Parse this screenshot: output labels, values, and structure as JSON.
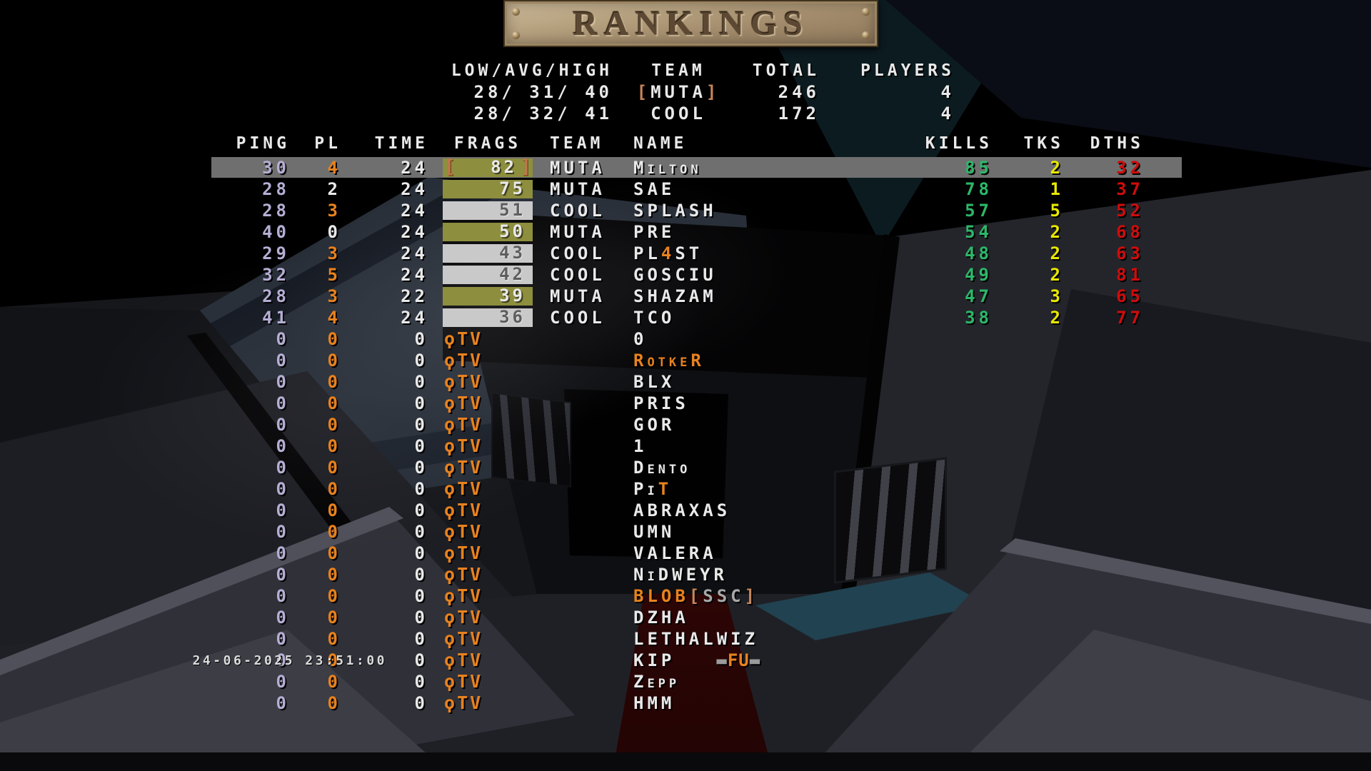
{
  "banner": {
    "title": "RANKINGS"
  },
  "summary": {
    "headers": {
      "range": "LOW/AVG/HIGH",
      "team": "TEAM",
      "total": "TOTAL",
      "players": "PLAYERS"
    },
    "rows": [
      {
        "range": "28/ 31/ 40",
        "team": "MUTA",
        "team_bracketed": true,
        "total": "246",
        "players": "4"
      },
      {
        "range": "28/ 32/ 41",
        "team": "COOL",
        "team_bracketed": false,
        "total": "172",
        "players": "4"
      }
    ]
  },
  "table": {
    "headers": {
      "ping": "PING",
      "pl": "PL",
      "time": "TIME",
      "frags": "FRAGS",
      "team": "TEAM",
      "name": "NAME",
      "kills": "KILLS",
      "tks": "TKS",
      "dths": "DTHS"
    },
    "players": [
      {
        "ping": "30",
        "pl": "4",
        "pl_color": "orange",
        "time": "24",
        "frags": "82",
        "frag_box": "olive",
        "frag_brackets": true,
        "team": "MUTA",
        "name": [
          {
            "text": "Milton"
          }
        ],
        "kills": "85",
        "tks": "2",
        "dths": "32",
        "highlighted": true
      },
      {
        "ping": "28",
        "pl": "2",
        "pl_color": "white",
        "time": "24",
        "frags": "75",
        "frag_box": "olive",
        "frag_brackets": false,
        "team": "MUTA",
        "name": [
          {
            "text": "SAE"
          }
        ],
        "kills": "78",
        "tks": "1",
        "dths": "37",
        "highlighted": false
      },
      {
        "ping": "28",
        "pl": "3",
        "pl_color": "orange",
        "time": "24",
        "frags": "51",
        "frag_box": "gray",
        "frag_brackets": false,
        "team": "COOL",
        "name": [
          {
            "text": "SPLASH"
          }
        ],
        "kills": "57",
        "tks": "5",
        "dths": "52",
        "highlighted": false
      },
      {
        "ping": "40",
        "pl": "0",
        "pl_color": "white",
        "time": "24",
        "frags": "50",
        "frag_box": "olive",
        "frag_brackets": false,
        "team": "MUTA",
        "name": [
          {
            "text": "PRE"
          }
        ],
        "kills": "54",
        "tks": "2",
        "dths": "68",
        "highlighted": false
      },
      {
        "ping": "29",
        "pl": "3",
        "pl_color": "orange",
        "time": "24",
        "frags": "43",
        "frag_box": "gray",
        "frag_brackets": false,
        "team": "COOL",
        "name": [
          {
            "text": "PL"
          },
          {
            "text": "4",
            "color": "orange"
          },
          {
            "text": "ST"
          }
        ],
        "kills": "48",
        "tks": "2",
        "dths": "63",
        "highlighted": false
      },
      {
        "ping": "32",
        "pl": "5",
        "pl_color": "orange",
        "time": "24",
        "frags": "42",
        "frag_box": "gray",
        "frag_brackets": false,
        "team": "COOL",
        "name": [
          {
            "text": "GOSCIU"
          }
        ],
        "kills": "49",
        "tks": "2",
        "dths": "81",
        "highlighted": false
      },
      {
        "ping": "28",
        "pl": "3",
        "pl_color": "orange",
        "time": "22",
        "frags": "39",
        "frag_box": "olive",
        "frag_brackets": false,
        "team": "MUTA",
        "name": [
          {
            "text": "SHAZAM"
          }
        ],
        "kills": "47",
        "tks": "3",
        "dths": "65",
        "highlighted": false
      },
      {
        "ping": "41",
        "pl": "4",
        "pl_color": "orange",
        "time": "24",
        "frags": "36",
        "frag_box": "gray",
        "frag_brackets": false,
        "team": "COOL",
        "name": [
          {
            "text": "TCO"
          }
        ],
        "kills": "38",
        "tks": "2",
        "dths": "77",
        "highlighted": false
      }
    ],
    "qtv": {
      "icon": "quake-logo-icon",
      "icon_glyph": "ϙ",
      "label": "TV"
    },
    "spectators": [
      {
        "ping": "0",
        "pl": "0",
        "time": "0",
        "name": [
          {
            "text": "0"
          }
        ]
      },
      {
        "ping": "0",
        "pl": "0",
        "time": "0",
        "name": [
          {
            "text": "RotkeR",
            "color": "orange"
          }
        ]
      },
      {
        "ping": "0",
        "pl": "0",
        "time": "0",
        "name": [
          {
            "text": "BLX"
          }
        ]
      },
      {
        "ping": "0",
        "pl": "0",
        "time": "0",
        "name": [
          {
            "text": "PRIS"
          }
        ]
      },
      {
        "ping": "0",
        "pl": "0",
        "time": "0",
        "name": [
          {
            "text": "GOR"
          }
        ]
      },
      {
        "ping": "0",
        "pl": "0",
        "time": "0",
        "name": [
          {
            "text": "1"
          }
        ]
      },
      {
        "ping": "0",
        "pl": "0",
        "time": "0",
        "name": [
          {
            "text": "Dento"
          }
        ]
      },
      {
        "ping": "0",
        "pl": "0",
        "time": "0",
        "name": [
          {
            "text": "Pi"
          },
          {
            "text": "T",
            "color": "orange"
          }
        ]
      },
      {
        "ping": "0",
        "pl": "0",
        "time": "0",
        "name": [
          {
            "text": "ABRAXAS"
          }
        ]
      },
      {
        "ping": "0",
        "pl": "0",
        "time": "0",
        "name": [
          {
            "text": "UMN"
          }
        ]
      },
      {
        "ping": "0",
        "pl": "0",
        "time": "0",
        "name": [
          {
            "text": "VALERA"
          }
        ]
      },
      {
        "ping": "0",
        "pl": "0",
        "time": "0",
        "name": [
          {
            "text": "NiDWEYR"
          }
        ]
      },
      {
        "ping": "0",
        "pl": "0",
        "time": "0",
        "name": [
          {
            "text": "BLOB",
            "color": "orange"
          },
          {
            "text": "[",
            "color": "tan"
          },
          {
            "text": "SSC",
            "color": "gray"
          },
          {
            "text": "]",
            "color": "tan"
          }
        ]
      },
      {
        "ping": "0",
        "pl": "0",
        "time": "0",
        "name": [
          {
            "text": "DZHA"
          }
        ]
      },
      {
        "ping": "0",
        "pl": "0",
        "time": "0",
        "name": [
          {
            "text": "LETHALWIZ"
          }
        ]
      },
      {
        "ping": "0",
        "pl": "0",
        "time": "0",
        "name": [
          {
            "text": "KIP"
          }
        ],
        "badge": "FU"
      },
      {
        "ping": "0",
        "pl": "0",
        "time": "0",
        "name": [
          {
            "text": "Zepp"
          }
        ]
      },
      {
        "ping": "0",
        "pl": "0",
        "time": "0",
        "name": [
          {
            "text": "HMM"
          }
        ]
      }
    ]
  },
  "footer": {
    "datetime": "24-06-2025 23:51:00"
  },
  "colors": {
    "white": "#e9e9e9",
    "orange": "#e8821e",
    "lavender": "#b6aed4",
    "green": "#2cb869",
    "yellow": "#e8e800",
    "red": "#d00c0c",
    "tan": "#c5855a",
    "gray": "#a8a8a8",
    "olive_box": "#8d8e3e",
    "gray_box": "#c9c9c9",
    "highlight_band": "#6f6f6f"
  }
}
